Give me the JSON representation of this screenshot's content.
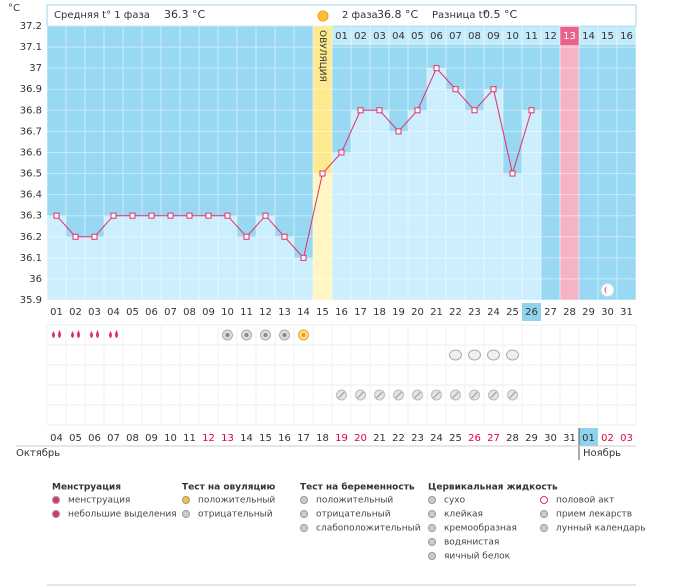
{
  "chart_data": {
    "type": "line",
    "y_unit": "°C",
    "header": {
      "phase1_label": "Средняя t° 1 фаза",
      "phase1_value": "36.3 °C",
      "phase2_label": "2 фаза",
      "phase2_value": "36.8 °C",
      "diff_label": "Разница t°",
      "diff_value": "0.5 °C"
    },
    "ovulation_label": "ОВУЛЯЦИЯ",
    "ovulation_day": 15,
    "marked_day": 28,
    "today_day": 26,
    "categories": [
      "01",
      "02",
      "03",
      "04",
      "05",
      "06",
      "07",
      "08",
      "09",
      "10",
      "11",
      "12",
      "13",
      "14",
      "15",
      "16",
      "17",
      "18",
      "19",
      "20",
      "21",
      "22",
      "23",
      "24",
      "25",
      "26",
      "27",
      "28",
      "29",
      "30",
      "31"
    ],
    "phase2_days": [
      "01",
      "02",
      "03",
      "04",
      "05",
      "06",
      "07",
      "08",
      "09",
      "10",
      "11",
      "12",
      "13",
      "14",
      "15",
      "16"
    ],
    "dates": [
      "04",
      "05",
      "06",
      "07",
      "08",
      "09",
      "10",
      "11",
      "12",
      "13",
      "14",
      "15",
      "16",
      "17",
      "18",
      "19",
      "20",
      "21",
      "22",
      "23",
      "24",
      "25",
      "26",
      "27",
      "28",
      "29",
      "30",
      "31",
      "01",
      "02",
      "03"
    ],
    "red_dates": [
      8,
      9,
      15,
      16,
      22,
      23,
      29,
      30
    ],
    "months": [
      "Октябрь",
      "Ноябрь"
    ],
    "series": [
      {
        "name": "t°",
        "color": "#e0306a",
        "values": [
          36.3,
          36.2,
          36.2,
          36.3,
          36.3,
          36.3,
          36.3,
          36.3,
          36.3,
          36.3,
          36.2,
          36.3,
          36.2,
          36.1,
          36.5,
          36.6,
          36.8,
          36.8,
          36.7,
          36.8,
          37.0,
          36.9,
          36.8,
          36.9,
          36.5,
          36.8,
          null,
          null,
          null,
          null,
          null
        ]
      }
    ],
    "ylim": [
      35.9,
      37.2
    ],
    "yticks": [
      35.9,
      36,
      36.1,
      36.2,
      36.3,
      36.4,
      36.5,
      36.6,
      36.7,
      36.8,
      36.9,
      37,
      37.1,
      37.2
    ],
    "events": {
      "menstruation": [
        1,
        2,
        3,
        4
      ],
      "ovulation_negative": [
        10,
        11,
        12,
        13
      ],
      "ovulation_positive": [
        14
      ],
      "cervical_creamy": [
        22,
        23,
        24,
        25
      ],
      "medication": [
        16,
        17,
        18,
        19,
        20,
        21,
        22,
        23,
        24,
        25
      ],
      "moon": [
        30
      ]
    },
    "legend": [
      {
        "title": "Менструация",
        "items": [
          "менструация",
          "небольшие выделения"
        ]
      },
      {
        "title": "Тест на овуляцию",
        "items": [
          "положительный",
          "отрицательный"
        ]
      },
      {
        "title": "Тест на беременность",
        "items": [
          "положительный",
          "отрицательный",
          "слабоположительный"
        ]
      },
      {
        "title": "Цервикальная жидкость",
        "items": [
          "сухо",
          "клейкая",
          "кремообразная",
          "водянистая",
          "яичный белок"
        ]
      },
      {
        "items": [
          "половой акт",
          "прием лекарств",
          "лунный календарь"
        ]
      }
    ]
  }
}
